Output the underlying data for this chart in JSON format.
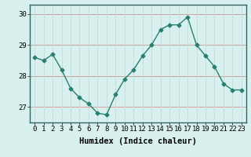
{
  "x": [
    0,
    1,
    2,
    3,
    4,
    5,
    6,
    7,
    8,
    9,
    10,
    11,
    12,
    13,
    14,
    15,
    16,
    17,
    18,
    19,
    20,
    21,
    22,
    23
  ],
  "y": [
    28.6,
    28.5,
    28.7,
    28.2,
    27.6,
    27.3,
    27.1,
    26.8,
    26.75,
    27.4,
    27.9,
    28.2,
    28.65,
    29.0,
    29.5,
    29.65,
    29.65,
    29.9,
    29.0,
    28.65,
    28.3,
    27.75,
    27.55,
    27.55
  ],
  "line_color": "#2a7f6f",
  "marker": "D",
  "marker_size": 2.5,
  "bg_color": "#d8f0ee",
  "grid_color": "#c4dedd",
  "grid_color_h": "#d0a0a0",
  "xlabel": "Humidex (Indice chaleur)",
  "ylim": [
    26.5,
    30.3
  ],
  "xlim": [
    -0.5,
    23.5
  ],
  "yticks": [
    27,
    28,
    29,
    30
  ],
  "xticks": [
    0,
    1,
    2,
    3,
    4,
    5,
    6,
    7,
    8,
    9,
    10,
    11,
    12,
    13,
    14,
    15,
    16,
    17,
    18,
    19,
    20,
    21,
    22,
    23
  ],
  "tick_label_fontsize": 6.5,
  "xlabel_fontsize": 7.5,
  "title": ""
}
